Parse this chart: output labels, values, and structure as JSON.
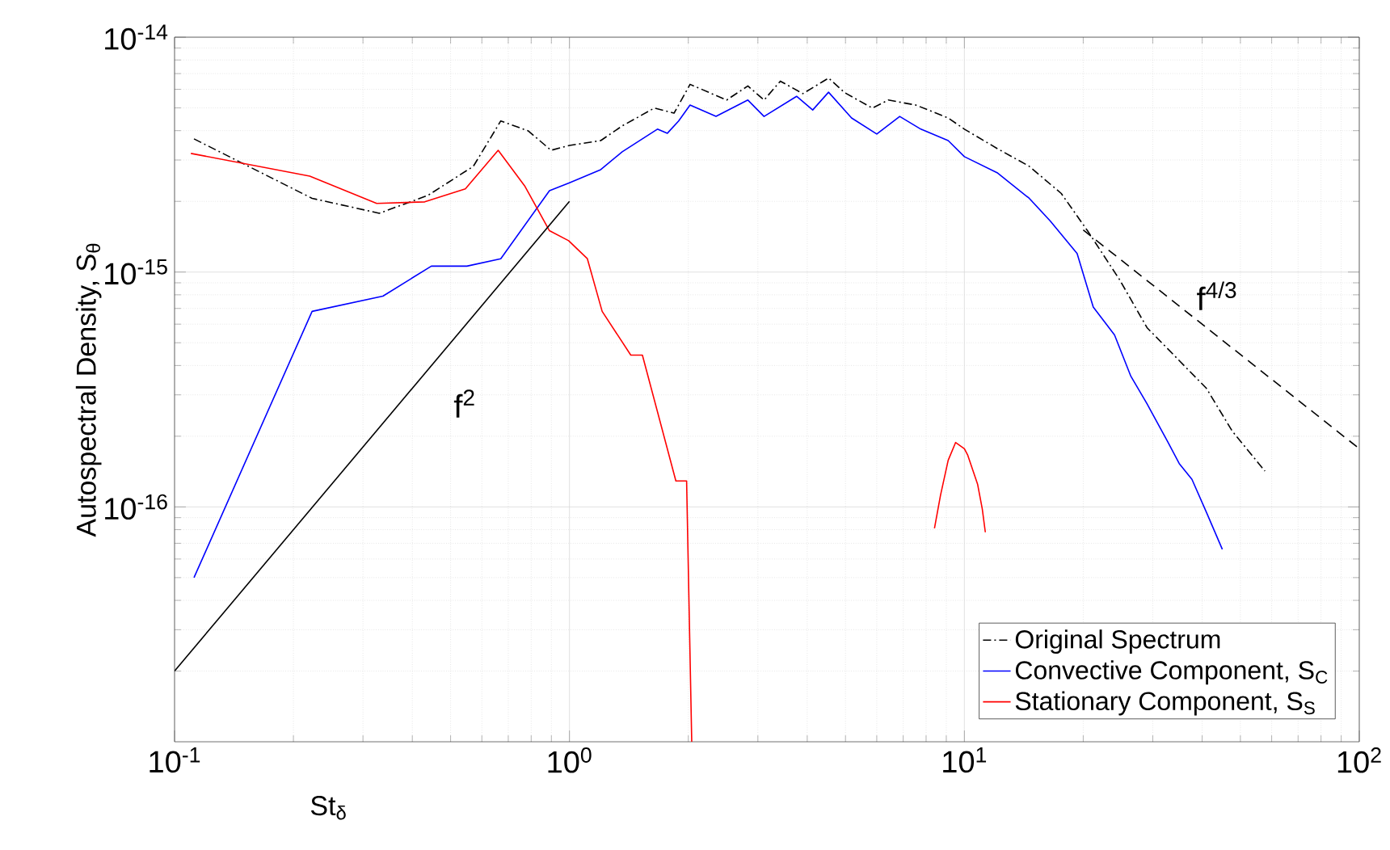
{
  "chart_data": {
    "type": "line",
    "xlabel": "St$_{δ}$",
    "ylabel": "Autospectral Density, S$_{θ}$",
    "log": "xy",
    "grid": true,
    "legend": "bottom right",
    "xlim": [
      0.1,
      100
    ],
    "ylim": [
      1e-17,
      1e-14
    ],
    "xticks": [
      {
        "value": 0.1,
        "label": "10$^{-1}$"
      },
      {
        "value": 1,
        "label": "10$^{0}$"
      },
      {
        "value": 10,
        "label": "10$^{1}$"
      },
      {
        "value": 100,
        "label": "10$^{2}$"
      }
    ],
    "yticks": [
      {
        "value": 1e-16,
        "label": "10$^{-16}$"
      },
      {
        "value": 1e-15,
        "label": "10$^{-15}$"
      },
      {
        "value": 1e-14,
        "label": "10$^{-14}$"
      }
    ],
    "annotations": [
      "f$^{2}$",
      "f$^{4/3}$"
    ],
    "series": [
      {
        "name": "Original Spectrum",
        "color": "#000000",
        "line_style": "dashdot",
        "x": [
          0.112,
          0.223,
          0.33,
          0.438,
          0.571,
          0.67,
          0.787,
          0.898,
          1.0,
          1.2,
          1.36,
          1.64,
          1.84,
          2.02,
          2.5,
          2.83,
          3.11,
          3.42,
          3.9,
          4.53,
          4.98,
          5.85,
          6.42,
          7.54,
          9.1,
          10,
          12.1,
          14.6,
          17.6,
          20.5,
          24.7,
          29,
          35,
          41,
          47.7,
          57.7
        ],
        "values": [
          3.69e-15,
          2.06e-15,
          1.78e-15,
          2.12e-15,
          2.82e-15,
          4.4e-15,
          3.99e-15,
          3.3e-15,
          3.46e-15,
          3.63e-15,
          4.19e-15,
          4.99e-15,
          4.75e-15,
          6.3e-15,
          5.4e-15,
          6.2e-15,
          5.4e-15,
          6.5e-15,
          5.75e-15,
          6.7e-15,
          5.8e-15,
          4.99e-15,
          5.4e-15,
          5.14e-15,
          4.53e-15,
          4.06e-15,
          3.36e-15,
          2.82e-15,
          2.16e-15,
          1.5e-15,
          9.3e-16,
          5.8e-16,
          4.2e-16,
          3.2e-16,
          2.1e-16,
          1.42e-16
        ]
      },
      {
        "name": "Convective Component, S$_{C}$",
        "color": "#0000ff",
        "line_style": "solid",
        "x": [
          0.112,
          0.223,
          0.337,
          0.447,
          0.55,
          0.67,
          0.89,
          1.0,
          1.2,
          1.36,
          1.67,
          1.77,
          1.89,
          2.02,
          2.35,
          2.83,
          3.11,
          3.76,
          4.13,
          4.53,
          5.18,
          6.0,
          6.86,
          7.76,
          9.1,
          10,
          12.1,
          14.6,
          16.5,
          19.3,
          21.2,
          24,
          26.4,
          29,
          32.7,
          35,
          37.7,
          41,
          45
        ],
        "values": [
          5e-17,
          6.8e-16,
          7.9e-16,
          1.06e-15,
          1.06e-15,
          1.14e-15,
          2.22e-15,
          2.4e-15,
          2.73e-15,
          3.25e-15,
          4.06e-15,
          3.9e-15,
          4.4e-15,
          5.14e-15,
          4.6e-15,
          5.4e-15,
          4.6e-15,
          5.6e-15,
          4.9e-15,
          5.83e-15,
          4.53e-15,
          3.87e-15,
          4.6e-15,
          4.06e-15,
          3.63e-15,
          3.1e-15,
          2.65e-15,
          2.06e-15,
          1.65e-15,
          1.2e-15,
          7.1e-16,
          5.4e-16,
          3.6e-16,
          2.75e-16,
          1.9e-16,
          1.53e-16,
          1.31e-16,
          9.5e-17,
          6.6e-17
        ]
      },
      {
        "name": "Stationary Component, S$_{S}$",
        "color": "#ff0000",
        "line_style": "solid",
        "x": [
          0.11,
          0.22,
          0.325,
          0.43,
          0.545,
          0.66,
          0.77,
          0.89,
          0.995,
          1.11,
          1.21,
          1.43,
          1.53,
          1.86,
          1.98,
          2.04,
          5,
          8.4,
          8.7,
          9.1,
          9.5,
          10,
          10.2,
          10.8,
          11.1,
          11.3
        ],
        "values": [
          3.2e-15,
          2.56e-15,
          1.96e-15,
          1.99e-15,
          2.26e-15,
          3.3e-15,
          2.33e-15,
          1.5e-15,
          1.36e-15,
          1.14e-15,
          6.8e-16,
          4.43e-16,
          4.43e-16,
          1.29e-16,
          1.29e-16,
          1e-17,
          null,
          8.1e-17,
          1.12e-16,
          1.58e-16,
          1.88e-16,
          1.77e-16,
          1.66e-16,
          1.25e-16,
          9.8e-17,
          7.8e-17
        ]
      },
      {
        "color": "#000000",
        "line_style": "solid",
        "x": [
          0.1,
          1
        ],
        "values": [
          2e-17,
          2e-15
        ]
      },
      {
        "color": "#000000",
        "line_style": "dashed",
        "x": [
          20,
          100
        ],
        "values": [
          1.51e-15,
          1.77e-16
        ]
      }
    ]
  }
}
